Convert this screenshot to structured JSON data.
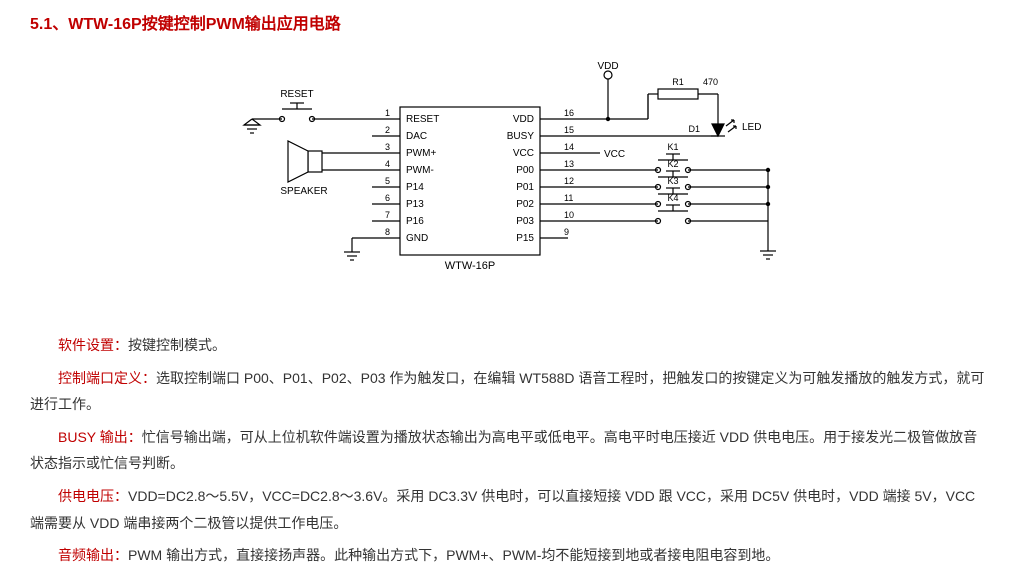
{
  "title": "5.1、WTW-16P按键控制PWM输出应用电路",
  "chip": {
    "name": "WTW-16P",
    "left_pins": [
      {
        "n": "1",
        "label": "RESET"
      },
      {
        "n": "2",
        "label": "DAC"
      },
      {
        "n": "3",
        "label": "PWM+"
      },
      {
        "n": "4",
        "label": "PWM-"
      },
      {
        "n": "5",
        "label": "P14"
      },
      {
        "n": "6",
        "label": "P13"
      },
      {
        "n": "7",
        "label": "P16"
      },
      {
        "n": "8",
        "label": "GND"
      }
    ],
    "right_pins": [
      {
        "n": "16",
        "label": "VDD"
      },
      {
        "n": "15",
        "label": "BUSY"
      },
      {
        "n": "14",
        "label": "VCC"
      },
      {
        "n": "13",
        "label": "P00"
      },
      {
        "n": "12",
        "label": "P01"
      },
      {
        "n": "11",
        "label": "P02"
      },
      {
        "n": "10",
        "label": "P03"
      },
      {
        "n": "9",
        "label": "P15"
      }
    ]
  },
  "labels": {
    "reset": "RESET",
    "speaker": "SPEAKER",
    "vdd": "VDD",
    "vcc": "VCC",
    "led": "LED",
    "r1": "R1",
    "r1_val": "470",
    "d1": "D1",
    "k1": "K1",
    "k2": "K2",
    "k3": "K3",
    "k4": "K4"
  },
  "notes": {
    "p1_head": "软件设置：",
    "p1_body": "按键控制模式。",
    "p2_head": "控制端口定义：",
    "p2_body": "选取控制端口 P00、P01、P02、P03 作为触发口，在编辑 WT588D 语音工程时，把触发口的按键定义为可触发播放的触发方式，就可进行工作。",
    "p3_head": "BUSY 输出：",
    "p3_body": "忙信号输出端，可从上位机软件端设置为播放状态输出为高电平或低电平。高电平时电压接近 VDD 供电电压。用于接发光二极管做放音状态指示或忙信号判断。",
    "p4_head": "供电电压：",
    "p4_body": "VDD=DC2.8～5.5V，VCC=DC2.8～3.6V。采用 DC3.3V 供电时，可以直接短接 VDD 跟 VCC，采用 DC5V 供电时，VDD 端接 5V，VCC 端需要从 VDD 端串接两个二极管以提供工作电压。",
    "p5_head": "音频输出：",
    "p5_body": "PWM 输出方式，直接接扬声器。此种输出方式下，PWM+、PWM-均不能短接到地或者接电阻电容到地。"
  },
  "style": {
    "stroke": "#000000",
    "fill_bg": "#ffffff",
    "text_color": "#000000",
    "red": "#c00000",
    "font_small": 10,
    "font_label": 11,
    "chip_w": 140,
    "chip_h": 148,
    "pin_spacing": 17
  }
}
